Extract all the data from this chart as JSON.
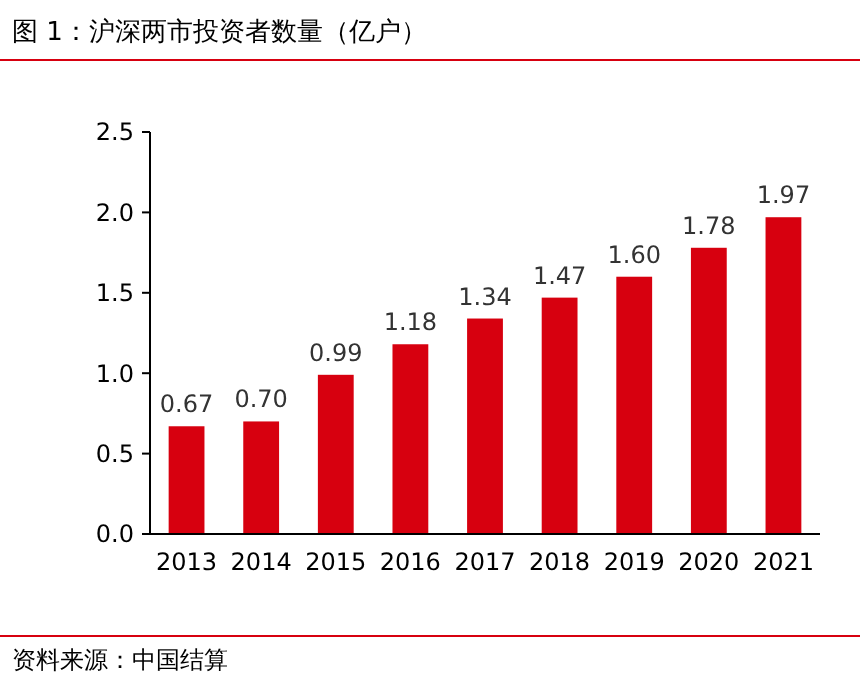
{
  "chart_data": {
    "type": "bar",
    "title": "图 1：沪深两市投资者数量（亿户）",
    "categories": [
      "2013",
      "2014",
      "2015",
      "2016",
      "2017",
      "2018",
      "2019",
      "2020",
      "2021"
    ],
    "values": [
      0.67,
      0.7,
      0.99,
      1.18,
      1.34,
      1.47,
      1.6,
      1.78,
      1.97
    ],
    "color": "#d7000f",
    "ylim": [
      0,
      2.5
    ],
    "yticks": [
      {
        "value": 0,
        "label": "0.0"
      },
      {
        "value": 0.5,
        "label": "0.5"
      },
      {
        "value": 1,
        "label": "1.0"
      },
      {
        "value": 1.5,
        "label": "1.5"
      },
      {
        "value": 2,
        "label": "2.0"
      },
      {
        "value": 2.5,
        "label": "2.5"
      }
    ],
    "value_labels": [
      "0.67",
      "0.70",
      "0.99",
      "1.18",
      "1.34",
      "1.47",
      "1.60",
      "1.78",
      "1.97"
    ],
    "grid": false,
    "annotations": [
      "资料来源：中国结算"
    ]
  }
}
